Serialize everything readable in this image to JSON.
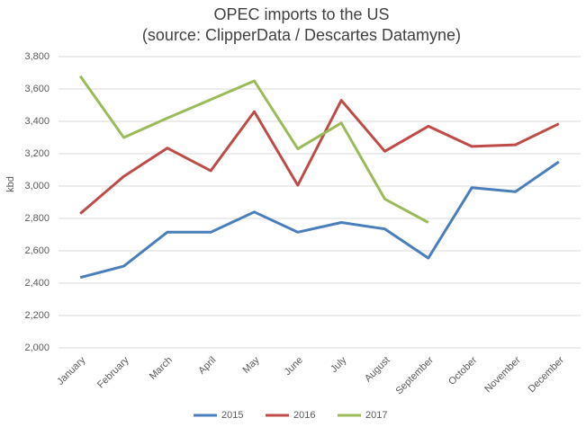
{
  "chart_data": {
    "type": "line",
    "title": "OPEC imports to the US",
    "subtitle": "(source: ClipperData / Descartes Datamyne)",
    "y_label": "kbd",
    "categories": [
      "January",
      "February",
      "March",
      "April",
      "May",
      "June",
      "July",
      "August",
      "September",
      "October",
      "November",
      "December"
    ],
    "series": [
      {
        "name": "2015",
        "color": "#4a7ebb",
        "values": [
          2435,
          2505,
          2715,
          2715,
          2840,
          2715,
          2775,
          2735,
          2555,
          2990,
          2965,
          3150
        ]
      },
      {
        "name": "2016",
        "color": "#be4b48",
        "values": [
          2830,
          3060,
          3235,
          3095,
          3460,
          3005,
          3530,
          3215,
          3370,
          3245,
          3255,
          3385
        ]
      },
      {
        "name": "2017",
        "color": "#9bbb59",
        "values": [
          3680,
          3300,
          3420,
          3535,
          3650,
          3230,
          3390,
          2920,
          2775,
          null,
          null,
          null
        ]
      }
    ],
    "ylim": [
      2000,
      3800
    ],
    "yticks": [
      {
        "value": 2000,
        "label": "2,000"
      },
      {
        "value": 2200,
        "label": "2,200"
      },
      {
        "value": 2400,
        "label": "2,400"
      },
      {
        "value": 2600,
        "label": "2,600"
      },
      {
        "value": 2800,
        "label": "2,800"
      },
      {
        "value": 3000,
        "label": "3,000"
      },
      {
        "value": 3200,
        "label": "3,200"
      },
      {
        "value": 3400,
        "label": "3,400"
      },
      {
        "value": 3600,
        "label": "3,600"
      },
      {
        "value": 3800,
        "label": "3,800"
      }
    ],
    "grid": true,
    "legend": "bottom"
  }
}
